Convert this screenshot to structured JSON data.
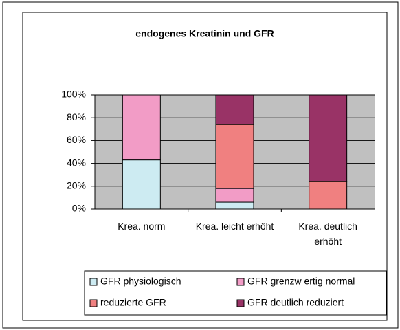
{
  "chart_data": {
    "type": "stacked_bar_percent",
    "title": "endogenes Kreatinin und GFR",
    "categories": [
      "Krea. norm",
      "Krea. leicht erhöht",
      "Krea. deutlich erhöht"
    ],
    "series": [
      {
        "name": "GFR physiologisch",
        "color": "#cdebf2",
        "values": [
          43,
          6,
          0
        ]
      },
      {
        "name": "GFR grenzw ertig normal",
        "color": "#f29cc6",
        "values": [
          57,
          12,
          0
        ]
      },
      {
        "name": "reduzierte GFR",
        "color": "#f08080",
        "values": [
          0,
          56,
          24
        ]
      },
      {
        "name": "GFR deutlich reduziert",
        "color": "#993366",
        "values": [
          0,
          26,
          76
        ]
      }
    ],
    "ylim": [
      0,
      100
    ],
    "yticks": [
      {
        "value": 0,
        "label": "0%"
      },
      {
        "value": 20,
        "label": "20%"
      },
      {
        "value": 40,
        "label": "40%"
      },
      {
        "value": 60,
        "label": "60%"
      },
      {
        "value": 80,
        "label": "80%"
      },
      {
        "value": 100,
        "label": "100%"
      }
    ],
    "grid": true,
    "legend": "bottom"
  }
}
